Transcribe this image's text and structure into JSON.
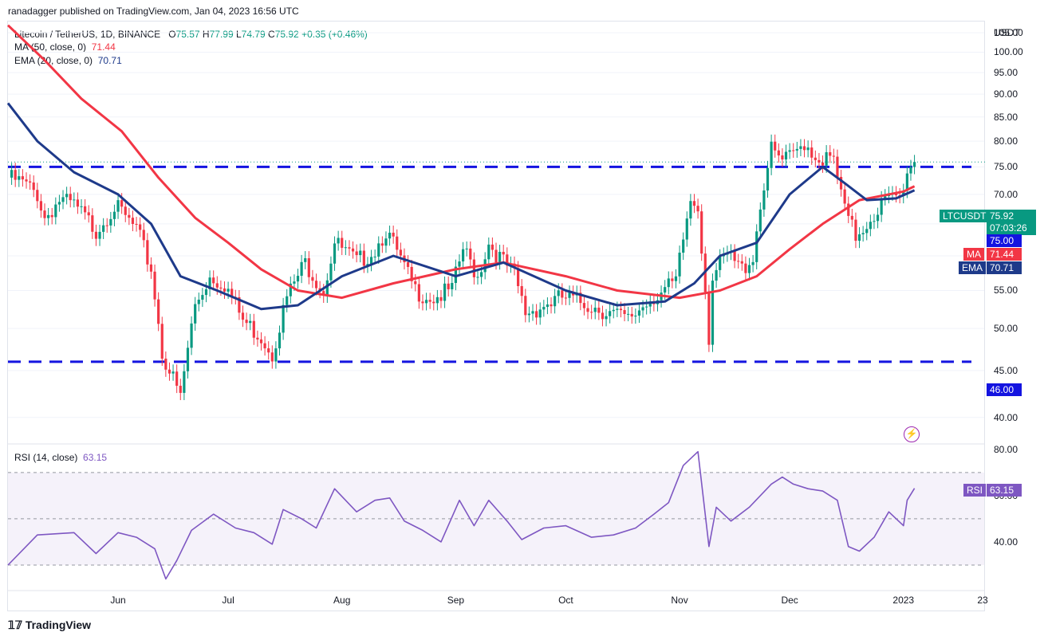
{
  "publisher": "ranadagger published on TradingView.com, Jan 04, 2023 16:56 UTC",
  "legend": {
    "symbol": "Litecoin / TetherUS, 1D, BINANCE",
    "o_label": "O",
    "o": "75.57",
    "h_label": "H",
    "h": "77.99",
    "l_label": "L",
    "l": "74.79",
    "c_label": "C",
    "c": "75.92",
    "change": "+0.35 (+0.46%)",
    "ma_label": "MA (50, close, 0)",
    "ma_value": "71.44",
    "ema_label": "EMA (20, close, 0)",
    "ema_value": "70.71",
    "rsi_label": "RSI (14, close)",
    "rsi_value": "63.15"
  },
  "badges": {
    "symbol_tag": "LTCUSDT",
    "price": "75.92",
    "countdown": "07:03:26",
    "level_75": "75.00",
    "ma_tag": "MA",
    "ma": "71.44",
    "ema_tag": "EMA",
    "ema": "70.71",
    "level_46": "46.00",
    "rsi_tag": "RSI",
    "rsi": "63.15"
  },
  "branding": "TradingView",
  "colors": {
    "up": "#089981",
    "down": "#f23645",
    "ma": "#f23645",
    "ema": "#1e3a8a",
    "levels": "#1414e0",
    "rsi": "#7e57c2",
    "rsi_band": "rgba(126,87,194,0.08)"
  },
  "chart_data": [
    {
      "type": "candlestick",
      "title": "Litecoin / TetherUS, 1D, BINANCE",
      "ylabel": "USDT",
      "y_scale": "log",
      "ylim": [
        37.5,
        108
      ],
      "y_ticks": [
        "105.00",
        "100.00",
        "95.00",
        "90.00",
        "85.00",
        "80.00",
        "75.00",
        "70.00",
        "65.00",
        "60.00",
        "55.00",
        "50.00",
        "45.00",
        "40.00"
      ],
      "x_ticks": [
        "Jun",
        "Jul",
        "Aug",
        "Sep",
        "Oct",
        "Nov",
        "Dec",
        "2023",
        "23"
      ],
      "x_range": [
        "2022-05-02",
        "2023-01-23"
      ],
      "horizontal_levels": [
        75.0,
        46.0
      ],
      "last_close": 75.92,
      "closes_anchor": [
        [
          "2022-05-02",
          73
        ],
        [
          "2022-05-06",
          72
        ],
        [
          "2022-05-10",
          70
        ],
        [
          "2022-05-12",
          66
        ],
        [
          "2022-05-16",
          69
        ],
        [
          "2022-05-20",
          68
        ],
        [
          "2022-05-26",
          64
        ],
        [
          "2022-05-31",
          68
        ],
        [
          "2022-06-06",
          64
        ],
        [
          "2022-06-10",
          58
        ],
        [
          "2022-06-13",
          47
        ],
        [
          "2022-06-16",
          44
        ],
        [
          "2022-06-18",
          42
        ],
        [
          "2022-06-22",
          53
        ],
        [
          "2022-06-26",
          57
        ],
        [
          "2022-06-30",
          56
        ],
        [
          "2022-07-05",
          51
        ],
        [
          "2022-07-10",
          49
        ],
        [
          "2022-07-13",
          47
        ],
        [
          "2022-07-17",
          54
        ],
        [
          "2022-07-22",
          59
        ],
        [
          "2022-07-27",
          55
        ],
        [
          "2022-07-30",
          62
        ],
        [
          "2022-08-05",
          59
        ],
        [
          "2022-08-10",
          61
        ],
        [
          "2022-08-13",
          64
        ],
        [
          "2022-08-18",
          58
        ],
        [
          "2022-08-21",
          55
        ],
        [
          "2022-08-26",
          54
        ],
        [
          "2022-08-31",
          55
        ],
        [
          "2022-09-03",
          61
        ],
        [
          "2022-09-07",
          57
        ],
        [
          "2022-09-10",
          62
        ],
        [
          "2022-09-14",
          59
        ],
        [
          "2022-09-17",
          57
        ],
        [
          "2022-09-20",
          52
        ],
        [
          "2022-09-25",
          53
        ],
        [
          "2022-09-30",
          54
        ],
        [
          "2022-10-08",
          53
        ],
        [
          "2022-10-13",
          52
        ],
        [
          "2022-10-18",
          51
        ],
        [
          "2022-10-24",
          54
        ],
        [
          "2022-10-28",
          55
        ],
        [
          "2022-10-31",
          56
        ],
        [
          "2022-11-04",
          69
        ],
        [
          "2022-11-06",
          68
        ],
        [
          "2022-11-09",
          49
        ],
        [
          "2022-11-10",
          57
        ],
        [
          "2022-11-14",
          60
        ],
        [
          "2022-11-18",
          58
        ],
        [
          "2022-11-21",
          60
        ],
        [
          "2022-11-24",
          72
        ],
        [
          "2022-11-26",
          78
        ],
        [
          "2022-11-29",
          76
        ],
        [
          "2022-12-02",
          77
        ],
        [
          "2022-12-05",
          80
        ],
        [
          "2022-12-08",
          77
        ],
        [
          "2022-12-13",
          76
        ],
        [
          "2022-12-16",
          67
        ],
        [
          "2022-12-19",
          63
        ],
        [
          "2022-12-23",
          66
        ],
        [
          "2022-12-27",
          69
        ],
        [
          "2022-12-30",
          69
        ],
        [
          "2023-01-01",
          70
        ],
        [
          "2023-01-02",
          75
        ],
        [
          "2023-01-04",
          75.92
        ]
      ],
      "series": [
        {
          "name": "MA (50, close, 0)",
          "last": 71.44,
          "points": [
            [
              "2022-05-02",
              107
            ],
            [
              "2022-05-12",
              98
            ],
            [
              "2022-05-22",
              89
            ],
            [
              "2022-06-02",
              82
            ],
            [
              "2022-06-12",
              73
            ],
            [
              "2022-06-22",
              66
            ],
            [
              "2022-07-01",
              62
            ],
            [
              "2022-07-10",
              58
            ],
            [
              "2022-07-20",
              55
            ],
            [
              "2022-08-01",
              54
            ],
            [
              "2022-08-15",
              56
            ],
            [
              "2022-09-01",
              58
            ],
            [
              "2022-09-14",
              59
            ],
            [
              "2022-10-01",
              57
            ],
            [
              "2022-10-15",
              55
            ],
            [
              "2022-11-01",
              54
            ],
            [
              "2022-11-12",
              55
            ],
            [
              "2022-11-22",
              57
            ],
            [
              "2022-12-01",
              61
            ],
            [
              "2022-12-10",
              65
            ],
            [
              "2022-12-20",
              69
            ],
            [
              "2023-01-01",
              70.5
            ],
            [
              "2023-01-04",
              71.44
            ]
          ]
        },
        {
          "name": "EMA (20, close, 0)",
          "last": 70.71,
          "points": [
            [
              "2022-05-02",
              88
            ],
            [
              "2022-05-10",
              80
            ],
            [
              "2022-05-20",
              74
            ],
            [
              "2022-06-01",
              70
            ],
            [
              "2022-06-10",
              65
            ],
            [
              "2022-06-18",
              57
            ],
            [
              "2022-06-28",
              55
            ],
            [
              "2022-07-10",
              52.5
            ],
            [
              "2022-07-20",
              53
            ],
            [
              "2022-08-01",
              57
            ],
            [
              "2022-08-15",
              60
            ],
            [
              "2022-09-01",
              57
            ],
            [
              "2022-09-14",
              59
            ],
            [
              "2022-10-01",
              55
            ],
            [
              "2022-10-15",
              53
            ],
            [
              "2022-10-28",
              53.5
            ],
            [
              "2022-11-05",
              56
            ],
            [
              "2022-11-12",
              60
            ],
            [
              "2022-11-22",
              62
            ],
            [
              "2022-12-01",
              70
            ],
            [
              "2022-12-10",
              75
            ],
            [
              "2022-12-16",
              72
            ],
            [
              "2022-12-22",
              69
            ],
            [
              "2022-12-30",
              69.3
            ],
            [
              "2023-01-04",
              70.71
            ]
          ]
        }
      ]
    },
    {
      "type": "line",
      "title": "RSI (14, close)",
      "ylim": [
        20,
        82
      ],
      "y_ticks": [
        "80.00",
        "60.00",
        "40.00"
      ],
      "bands": [
        70,
        30
      ],
      "midline": 50,
      "last": 63.15,
      "points": [
        [
          "2022-05-02",
          30
        ],
        [
          "2022-05-10",
          43
        ],
        [
          "2022-05-20",
          44
        ],
        [
          "2022-05-26",
          35
        ],
        [
          "2022-06-01",
          44
        ],
        [
          "2022-06-06",
          42
        ],
        [
          "2022-06-11",
          37
        ],
        [
          "2022-06-14",
          24
        ],
        [
          "2022-06-17",
          32
        ],
        [
          "2022-06-21",
          45
        ],
        [
          "2022-06-27",
          52
        ],
        [
          "2022-07-03",
          46
        ],
        [
          "2022-07-08",
          44
        ],
        [
          "2022-07-13",
          39
        ],
        [
          "2022-07-16",
          54
        ],
        [
          "2022-07-21",
          50
        ],
        [
          "2022-07-25",
          46
        ],
        [
          "2022-07-30",
          63
        ],
        [
          "2022-08-05",
          53
        ],
        [
          "2022-08-10",
          58
        ],
        [
          "2022-08-14",
          59
        ],
        [
          "2022-08-18",
          49
        ],
        [
          "2022-08-23",
          45
        ],
        [
          "2022-08-28",
          40
        ],
        [
          "2022-09-02",
          58
        ],
        [
          "2022-09-06",
          47
        ],
        [
          "2022-09-10",
          58
        ],
        [
          "2022-09-15",
          49
        ],
        [
          "2022-09-19",
          41
        ],
        [
          "2022-09-25",
          46
        ],
        [
          "2022-10-01",
          47
        ],
        [
          "2022-10-08",
          42
        ],
        [
          "2022-10-14",
          43
        ],
        [
          "2022-10-20",
          46
        ],
        [
          "2022-10-25",
          52
        ],
        [
          "2022-10-29",
          57
        ],
        [
          "2022-11-02",
          73
        ],
        [
          "2022-11-06",
          79
        ],
        [
          "2022-11-09",
          38
        ],
        [
          "2022-11-11",
          55
        ],
        [
          "2022-11-15",
          49
        ],
        [
          "2022-11-20",
          55
        ],
        [
          "2022-11-26",
          65
        ],
        [
          "2022-11-29",
          68
        ],
        [
          "2022-12-02",
          65
        ],
        [
          "2022-12-06",
          63
        ],
        [
          "2022-12-10",
          62
        ],
        [
          "2022-12-14",
          58
        ],
        [
          "2022-12-17",
          38
        ],
        [
          "2022-12-20",
          36
        ],
        [
          "2022-12-24",
          42
        ],
        [
          "2022-12-28",
          53
        ],
        [
          "2023-01-01",
          47
        ],
        [
          "2023-01-02",
          58
        ],
        [
          "2023-01-04",
          63.15
        ]
      ]
    }
  ]
}
